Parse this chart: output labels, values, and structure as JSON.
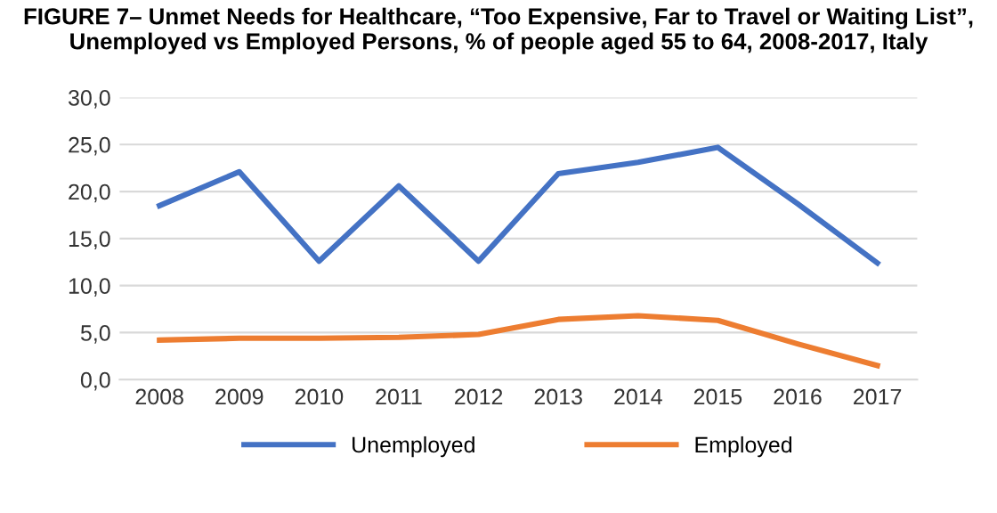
{
  "chart_data": {
    "type": "line",
    "title": "FIGURE 7– Unmet Needs for Healthcare, “Too Expensive, Far to Travel or Waiting List”,\nUnemployed vs Employed Persons, % of people aged 55 to 64, 2008-2017, Italy",
    "categories": [
      "2008",
      "2009",
      "2010",
      "2011",
      "2012",
      "2013",
      "2014",
      "2015",
      "2016",
      "2017"
    ],
    "series": [
      {
        "name": "Unemployed",
        "color": "#4472c4",
        "values": [
          18.5,
          22.1,
          12.6,
          20.6,
          12.6,
          21.9,
          23.1,
          24.7,
          18.7,
          12.4
        ]
      },
      {
        "name": "Employed",
        "color": "#ed7d31",
        "values": [
          4.2,
          4.4,
          4.4,
          4.5,
          4.8,
          6.4,
          6.8,
          6.3,
          3.8,
          1.5
        ]
      }
    ],
    "ylim": [
      0,
      30
    ],
    "yticks": [
      {
        "value": 0,
        "label": "0,0"
      },
      {
        "value": 5,
        "label": "5,0"
      },
      {
        "value": 10,
        "label": "10,0"
      },
      {
        "value": 15,
        "label": "15,0"
      },
      {
        "value": 20,
        "label": "20,0"
      },
      {
        "value": 25,
        "label": "25,0"
      },
      {
        "value": 30,
        "label": "30,0"
      }
    ],
    "grid": "y",
    "legend": "bottom",
    "marker": "none",
    "line_style": "solid"
  }
}
